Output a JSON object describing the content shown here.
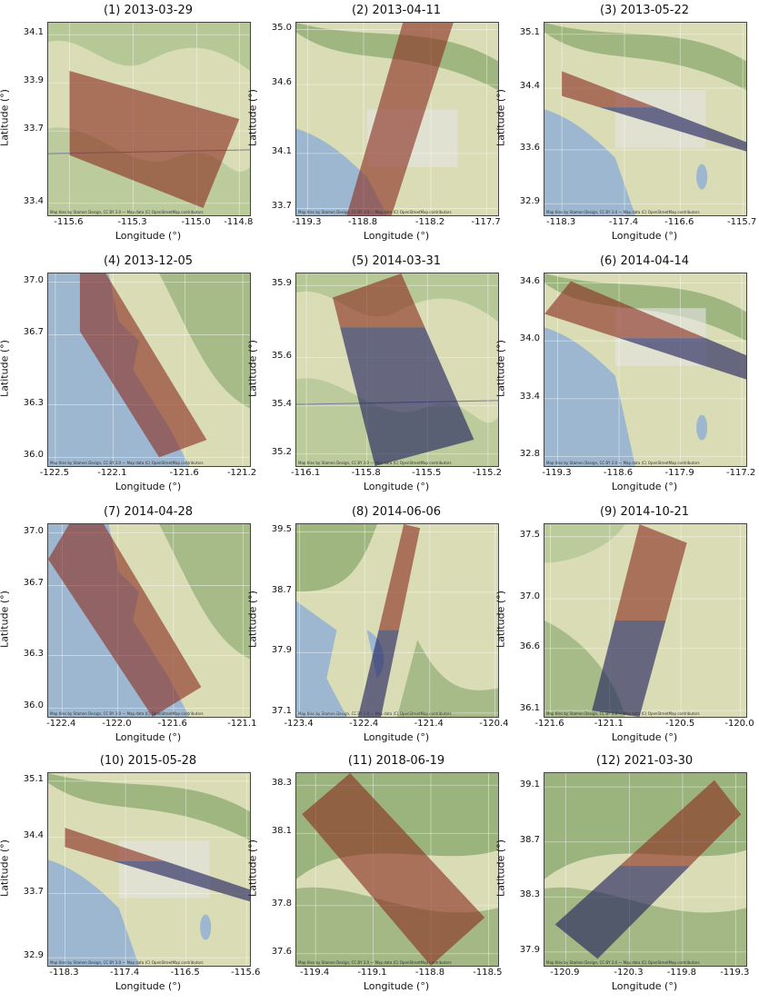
{
  "axis_labels": {
    "x": "Longitude (°)",
    "y": "Latitude (°)"
  },
  "attribution": "Map tiles by Stamen Design, CC BY 3.0 — Map data (C) OpenStreetMap contributors",
  "colors": {
    "ascending": "#8b2e22",
    "descending": "#1e1e5c",
    "water": "#9cb7cf",
    "land": "#d9dcb5",
    "veg": "#a8bf8a",
    "relief": "#86a56a"
  },
  "panels": [
    {
      "title": "(1) 2013-03-29",
      "xticks": [
        "-115.6",
        "-115.3",
        "-115.0",
        "-114.8"
      ],
      "yticks": [
        "34.1",
        "33.9",
        "33.7",
        "33.4"
      ],
      "xrange": [
        -115.7,
        -114.75
      ],
      "yrange": [
        33.35,
        34.15
      ],
      "footprint": [
        [
          -115.6,
          33.95
        ],
        [
          -114.8,
          33.75
        ],
        [
          -114.97,
          33.38
        ],
        [
          -115.6,
          33.6
        ]
      ],
      "split": null,
      "basemap": "desert"
    },
    {
      "title": "(2) 2013-04-11",
      "xticks": [
        "-119.3",
        "-118.8",
        "-118.2",
        "-117.7"
      ],
      "yticks": [
        "35.0",
        "34.6",
        "34.1",
        "33.7"
      ],
      "xrange": [
        -119.4,
        -117.6
      ],
      "yrange": [
        33.65,
        35.05
      ],
      "footprint": [
        [
          -118.45,
          35.05
        ],
        [
          -118.0,
          35.05
        ],
        [
          -118.55,
          33.65
        ],
        [
          -118.95,
          33.65
        ]
      ],
      "split": null,
      "basemap": "la"
    },
    {
      "title": "(3) 2013-05-22",
      "xticks": [
        "-118.3",
        "-117.4",
        "-116.6",
        "-115.7"
      ],
      "yticks": [
        "35.1",
        "34.4",
        "33.6",
        "32.9"
      ],
      "xrange": [
        -118.55,
        -115.65
      ],
      "yrange": [
        32.75,
        35.25
      ],
      "footprint": [
        [
          -118.3,
          34.62
        ],
        [
          -115.65,
          33.7
        ],
        [
          -115.65,
          33.58
        ],
        [
          -118.3,
          34.3
        ]
      ],
      "split": 0.55,
      "basemap": "socal"
    },
    {
      "title": "(4) 2013-12-05",
      "xticks": [
        "-122.5",
        "-122.1",
        "-121.6",
        "-121.2"
      ],
      "yticks": [
        "37.0",
        "36.7",
        "36.3",
        "36.0"
      ],
      "xrange": [
        -122.55,
        -121.15
      ],
      "yrange": [
        35.95,
        37.05
      ],
      "footprint": [
        [
          -122.33,
          37.05
        ],
        [
          -122.15,
          37.05
        ],
        [
          -121.45,
          36.1
        ],
        [
          -121.78,
          36.0
        ],
        [
          -122.33,
          36.72
        ]
      ],
      "split": null,
      "basemap": "coast"
    },
    {
      "title": "(5) 2014-03-31",
      "xticks": [
        "-116.1",
        "-115.8",
        "-115.5",
        "-115.2"
      ],
      "yticks": [
        "35.9",
        "35.6",
        "35.4",
        "35.2"
      ],
      "xrange": [
        -116.15,
        -115.15
      ],
      "yrange": [
        35.15,
        35.95
      ],
      "footprint": [
        [
          -115.97,
          35.85
        ],
        [
          -115.63,
          35.95
        ],
        [
          -115.27,
          35.26
        ],
        [
          -115.76,
          35.15
        ]
      ],
      "split": 0.72,
      "basemap": "desert"
    },
    {
      "title": "(6) 2014-04-14",
      "xticks": [
        "-119.3",
        "-118.6",
        "-117.9",
        "-117.2"
      ],
      "yticks": [
        "34.6",
        "34.0",
        "33.4",
        "32.8"
      ],
      "xrange": [
        -119.45,
        -117.15
      ],
      "yrange": [
        32.7,
        34.7
      ],
      "footprint": [
        [
          -119.15,
          34.62
        ],
        [
          -117.15,
          33.85
        ],
        [
          -117.15,
          33.6
        ],
        [
          -119.45,
          34.28
        ]
      ],
      "split": 0.42,
      "basemap": "socal2"
    },
    {
      "title": "(7) 2014-04-28",
      "xticks": [
        "-122.4",
        "-122.0",
        "-121.6",
        "-121.1"
      ],
      "yticks": [
        "37.0",
        "36.7",
        "36.3",
        "36.0"
      ],
      "xrange": [
        -122.5,
        -121.05
      ],
      "yrange": [
        35.95,
        37.05
      ],
      "footprint": [
        [
          -122.35,
          37.05
        ],
        [
          -122.1,
          37.05
        ],
        [
          -121.4,
          36.12
        ],
        [
          -121.75,
          35.95
        ],
        [
          -122.5,
          36.85
        ]
      ],
      "split": null,
      "basemap": "coast"
    },
    {
      "title": "(8) 2014-06-06",
      "xticks": [
        "-123.4",
        "-122.4",
        "-121.4",
        "-120.4"
      ],
      "yticks": [
        "39.5",
        "38.7",
        "37.9",
        "37.1"
      ],
      "xrange": [
        -123.45,
        -120.35
      ],
      "yrange": [
        37.05,
        39.6
      ],
      "footprint": [
        [
          -121.8,
          39.6
        ],
        [
          -121.55,
          39.55
        ],
        [
          -122.15,
          37.05
        ],
        [
          -122.5,
          37.05
        ]
      ],
      "split": 0.45,
      "basemap": "norcal"
    },
    {
      "title": "(9) 2014-10-21",
      "xticks": [
        "-121.6",
        "-121.1",
        "-120.5",
        "-120.0"
      ],
      "yticks": [
        "37.5",
        "37.0",
        "36.6",
        "36.1"
      ],
      "xrange": [
        -121.65,
        -119.95
      ],
      "yrange": [
        36.05,
        37.6
      ],
      "footprint": [
        [
          -120.85,
          37.6
        ],
        [
          -120.45,
          37.45
        ],
        [
          -120.85,
          36.05
        ],
        [
          -121.25,
          36.1
        ]
      ],
      "split": 0.5,
      "basemap": "valley"
    },
    {
      "title": "(10) 2015-05-28",
      "xticks": [
        "-118.3",
        "-117.4",
        "-116.5",
        "-115.6"
      ],
      "yticks": [
        "35.1",
        "34.4",
        "33.7",
        "32.9"
      ],
      "xrange": [
        -118.55,
        -115.55
      ],
      "yrange": [
        32.8,
        35.2
      ],
      "footprint": [
        [
          -118.3,
          34.52
        ],
        [
          -115.55,
          33.75
        ],
        [
          -115.55,
          33.6
        ],
        [
          -118.3,
          34.28
        ]
      ],
      "split": 0.55,
      "basemap": "socal"
    },
    {
      "title": "(11) 2018-06-19",
      "xticks": [
        "-119.4",
        "-119.1",
        "-118.8",
        "-118.5"
      ],
      "yticks": [
        "38.3",
        "38.1",
        "37.8",
        "37.6"
      ],
      "xrange": [
        -119.5,
        -118.45
      ],
      "yrange": [
        37.55,
        38.35
      ],
      "footprint": [
        [
          -119.47,
          38.18
        ],
        [
          -119.22,
          38.35
        ],
        [
          -118.52,
          37.75
        ],
        [
          -118.8,
          37.55
        ]
      ],
      "split": null,
      "basemap": "sierra"
    },
    {
      "title": "(12) 2021-03-30",
      "xticks": [
        "-120.9",
        "-120.3",
        "-119.8",
        "-119.3"
      ],
      "yticks": [
        "39.1",
        "38.7",
        "38.3",
        "37.9"
      ],
      "xrange": [
        -121.1,
        -119.2
      ],
      "yrange": [
        37.8,
        39.2
      ],
      "footprint": [
        [
          -119.5,
          39.15
        ],
        [
          -119.25,
          38.9
        ],
        [
          -120.6,
          37.85
        ],
        [
          -121.0,
          38.1
        ]
      ],
      "split": 0.52,
      "basemap": "sierra"
    }
  ]
}
